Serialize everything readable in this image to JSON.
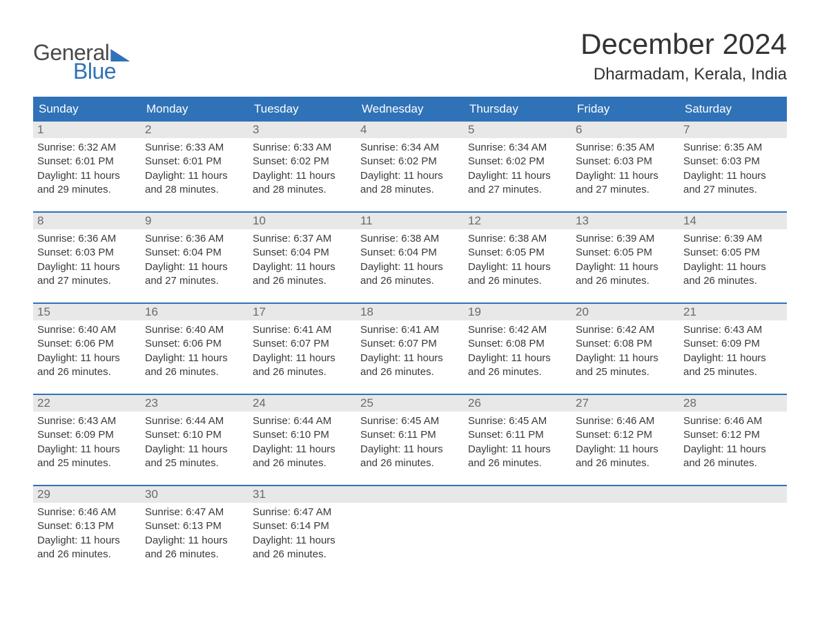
{
  "logo": {
    "general": "General",
    "blue": "Blue"
  },
  "title": "December 2024",
  "location": "Dharmadam, Kerala, India",
  "colors": {
    "header_bg": "#2f72b8",
    "header_text": "#ffffff",
    "daynum_bg": "#e8e8e8",
    "daynum_text": "#6a6a6a",
    "body_text": "#3a3a3a",
    "week_divider": "#2f72b8",
    "page_bg": "#ffffff"
  },
  "typography": {
    "title_fontsize": 42,
    "location_fontsize": 24,
    "weekday_fontsize": 17,
    "daynum_fontsize": 17,
    "body_fontsize": 15
  },
  "weekdays": [
    "Sunday",
    "Monday",
    "Tuesday",
    "Wednesday",
    "Thursday",
    "Friday",
    "Saturday"
  ],
  "days": [
    {
      "n": "1",
      "sunrise": "6:32 AM",
      "sunset": "6:01 PM",
      "dl1": "Daylight: 11 hours",
      "dl2": "and 29 minutes."
    },
    {
      "n": "2",
      "sunrise": "6:33 AM",
      "sunset": "6:01 PM",
      "dl1": "Daylight: 11 hours",
      "dl2": "and 28 minutes."
    },
    {
      "n": "3",
      "sunrise": "6:33 AM",
      "sunset": "6:02 PM",
      "dl1": "Daylight: 11 hours",
      "dl2": "and 28 minutes."
    },
    {
      "n": "4",
      "sunrise": "6:34 AM",
      "sunset": "6:02 PM",
      "dl1": "Daylight: 11 hours",
      "dl2": "and 28 minutes."
    },
    {
      "n": "5",
      "sunrise": "6:34 AM",
      "sunset": "6:02 PM",
      "dl1": "Daylight: 11 hours",
      "dl2": "and 27 minutes."
    },
    {
      "n": "6",
      "sunrise": "6:35 AM",
      "sunset": "6:03 PM",
      "dl1": "Daylight: 11 hours",
      "dl2": "and 27 minutes."
    },
    {
      "n": "7",
      "sunrise": "6:35 AM",
      "sunset": "6:03 PM",
      "dl1": "Daylight: 11 hours",
      "dl2": "and 27 minutes."
    },
    {
      "n": "8",
      "sunrise": "6:36 AM",
      "sunset": "6:03 PM",
      "dl1": "Daylight: 11 hours",
      "dl2": "and 27 minutes."
    },
    {
      "n": "9",
      "sunrise": "6:36 AM",
      "sunset": "6:04 PM",
      "dl1": "Daylight: 11 hours",
      "dl2": "and 27 minutes."
    },
    {
      "n": "10",
      "sunrise": "6:37 AM",
      "sunset": "6:04 PM",
      "dl1": "Daylight: 11 hours",
      "dl2": "and 26 minutes."
    },
    {
      "n": "11",
      "sunrise": "6:38 AM",
      "sunset": "6:04 PM",
      "dl1": "Daylight: 11 hours",
      "dl2": "and 26 minutes."
    },
    {
      "n": "12",
      "sunrise": "6:38 AM",
      "sunset": "6:05 PM",
      "dl1": "Daylight: 11 hours",
      "dl2": "and 26 minutes."
    },
    {
      "n": "13",
      "sunrise": "6:39 AM",
      "sunset": "6:05 PM",
      "dl1": "Daylight: 11 hours",
      "dl2": "and 26 minutes."
    },
    {
      "n": "14",
      "sunrise": "6:39 AM",
      "sunset": "6:05 PM",
      "dl1": "Daylight: 11 hours",
      "dl2": "and 26 minutes."
    },
    {
      "n": "15",
      "sunrise": "6:40 AM",
      "sunset": "6:06 PM",
      "dl1": "Daylight: 11 hours",
      "dl2": "and 26 minutes."
    },
    {
      "n": "16",
      "sunrise": "6:40 AM",
      "sunset": "6:06 PM",
      "dl1": "Daylight: 11 hours",
      "dl2": "and 26 minutes."
    },
    {
      "n": "17",
      "sunrise": "6:41 AM",
      "sunset": "6:07 PM",
      "dl1": "Daylight: 11 hours",
      "dl2": "and 26 minutes."
    },
    {
      "n": "18",
      "sunrise": "6:41 AM",
      "sunset": "6:07 PM",
      "dl1": "Daylight: 11 hours",
      "dl2": "and 26 minutes."
    },
    {
      "n": "19",
      "sunrise": "6:42 AM",
      "sunset": "6:08 PM",
      "dl1": "Daylight: 11 hours",
      "dl2": "and 26 minutes."
    },
    {
      "n": "20",
      "sunrise": "6:42 AM",
      "sunset": "6:08 PM",
      "dl1": "Daylight: 11 hours",
      "dl2": "and 25 minutes."
    },
    {
      "n": "21",
      "sunrise": "6:43 AM",
      "sunset": "6:09 PM",
      "dl1": "Daylight: 11 hours",
      "dl2": "and 25 minutes."
    },
    {
      "n": "22",
      "sunrise": "6:43 AM",
      "sunset": "6:09 PM",
      "dl1": "Daylight: 11 hours",
      "dl2": "and 25 minutes."
    },
    {
      "n": "23",
      "sunrise": "6:44 AM",
      "sunset": "6:10 PM",
      "dl1": "Daylight: 11 hours",
      "dl2": "and 25 minutes."
    },
    {
      "n": "24",
      "sunrise": "6:44 AM",
      "sunset": "6:10 PM",
      "dl1": "Daylight: 11 hours",
      "dl2": "and 26 minutes."
    },
    {
      "n": "25",
      "sunrise": "6:45 AM",
      "sunset": "6:11 PM",
      "dl1": "Daylight: 11 hours",
      "dl2": "and 26 minutes."
    },
    {
      "n": "26",
      "sunrise": "6:45 AM",
      "sunset": "6:11 PM",
      "dl1": "Daylight: 11 hours",
      "dl2": "and 26 minutes."
    },
    {
      "n": "27",
      "sunrise": "6:46 AM",
      "sunset": "6:12 PM",
      "dl1": "Daylight: 11 hours",
      "dl2": "and 26 minutes."
    },
    {
      "n": "28",
      "sunrise": "6:46 AM",
      "sunset": "6:12 PM",
      "dl1": "Daylight: 11 hours",
      "dl2": "and 26 minutes."
    },
    {
      "n": "29",
      "sunrise": "6:46 AM",
      "sunset": "6:13 PM",
      "dl1": "Daylight: 11 hours",
      "dl2": "and 26 minutes."
    },
    {
      "n": "30",
      "sunrise": "6:47 AM",
      "sunset": "6:13 PM",
      "dl1": "Daylight: 11 hours",
      "dl2": "and 26 minutes."
    },
    {
      "n": "31",
      "sunrise": "6:47 AM",
      "sunset": "6:14 PM",
      "dl1": "Daylight: 11 hours",
      "dl2": "and 26 minutes."
    }
  ],
  "labels": {
    "sunrise_prefix": "Sunrise: ",
    "sunset_prefix": "Sunset: "
  },
  "layout": {
    "columns": 7,
    "first_day_offset": 0,
    "total_cells": 35
  }
}
